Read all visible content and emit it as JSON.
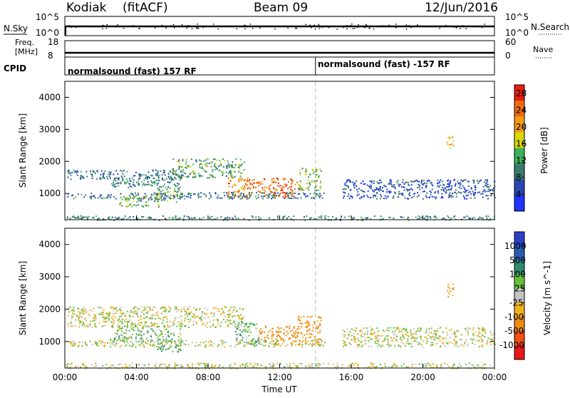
{
  "header": {
    "station": "Kodiak",
    "mode": "(fitACF)",
    "beam": "Beam 09",
    "date": "12/Jun/2016"
  },
  "top_panels": {
    "nsky_label": "N.Sky",
    "nsearch_label": "N.Search",
    "nsky_ticks": [
      "10^5",
      "10^0"
    ],
    "nsearch_ticks": [
      "10^5",
      "10^0"
    ],
    "freq_label_1": "Freq.",
    "freq_label_2": "[MHz]",
    "freq_ticks": [
      "18",
      "8"
    ],
    "nave_label": "Nave",
    "nave_ticks": [
      "60",
      "0"
    ],
    "cpid_label": "CPID",
    "cpid_segments": [
      "normalsound (fast) 157 RF",
      "normalsound (fast) -157 RF"
    ],
    "cpid_switch_hour": 14.0
  },
  "colors": {
    "power_scale": [
      "#2033ff",
      "#2a46b0",
      "#3a7a6a",
      "#3bb25a",
      "#d8d80a",
      "#f49a14",
      "#f06a0c",
      "#e61e12"
    ],
    "velocity_scale": [
      "#2a3fc8",
      "#2a5ab0",
      "#2f8a70",
      "#66c03a",
      "#c4c4c4",
      "#f0b020",
      "#f08a10",
      "#f05010",
      "#e81818"
    ]
  },
  "chart_data": [
    {
      "type": "heatmap",
      "name": "power",
      "xlabel": "",
      "ylabel": "Slant Range [km]",
      "x_ticks": [
        "00:00",
        "04:00",
        "08:00",
        "12:00",
        "16:00",
        "20:00",
        "00:00"
      ],
      "xlim": [
        0,
        24
      ],
      "ylim": [
        180,
        4500
      ],
      "y_ticks": [
        1000,
        2000,
        3000,
        4000
      ],
      "colorbar_label": "Power [dB]",
      "colorbar_ticks": [
        "4",
        "8",
        "12",
        "16",
        "20",
        "24",
        "28"
      ],
      "colorbar_range": [
        0,
        30
      ],
      "echo_regions": [
        {
          "t0": 0.1,
          "t1": 6.5,
          "r0": 1450,
          "r1": 1750,
          "level": 8
        },
        {
          "t0": 2.5,
          "t1": 6.5,
          "r0": 1200,
          "r1": 1500,
          "level": 10
        },
        {
          "t0": 6.0,
          "t1": 10.0,
          "r0": 1500,
          "r1": 2100,
          "level": 12
        },
        {
          "t0": 9.0,
          "t1": 10.0,
          "r0": 900,
          "r1": 1500,
          "level": 22
        },
        {
          "t0": 10.0,
          "t1": 13.0,
          "r0": 900,
          "r1": 1500,
          "level": 24
        },
        {
          "t0": 13.0,
          "t1": 14.3,
          "r0": 1100,
          "r1": 1800,
          "level": 14
        },
        {
          "t0": 0.1,
          "t1": 14.5,
          "r0": 850,
          "r1": 1050,
          "level": 8
        },
        {
          "t0": 3.0,
          "t1": 5.5,
          "r0": 600,
          "r1": 950,
          "level": 12
        },
        {
          "t0": 5.0,
          "t1": 6.5,
          "r0": 750,
          "r1": 1200,
          "level": 12
        },
        {
          "t0": 15.5,
          "t1": 24.0,
          "r0": 850,
          "r1": 1450,
          "level": 6
        },
        {
          "t0": 21.3,
          "t1": 21.7,
          "r0": 2400,
          "r1": 2800,
          "level": 20
        },
        {
          "t0": 0.0,
          "t1": 24.0,
          "r0": 180,
          "r1": 320,
          "level": 10
        }
      ]
    },
    {
      "type": "heatmap",
      "name": "velocity",
      "xlabel": "Time UT",
      "ylabel": "Slant Range [km]",
      "x_ticks": [
        "00:00",
        "04:00",
        "08:00",
        "12:00",
        "16:00",
        "20:00",
        "00:00"
      ],
      "xlim": [
        0,
        24
      ],
      "ylim": [
        180,
        4500
      ],
      "y_ticks": [
        1000,
        2000,
        3000,
        4000
      ],
      "colorbar_label": "Velocity [m s^-1]",
      "colorbar_ticks": [
        "1000",
        "500",
        "100",
        "25",
        "-25",
        "-100",
        "-500",
        "-1000"
      ],
      "colorbar_range": [
        -1200,
        1200
      ],
      "echo_regions": [
        {
          "t0": 0.1,
          "t1": 10.0,
          "r0": 1450,
          "r1": 2100,
          "vel": 0
        },
        {
          "t0": 2.5,
          "t1": 6.5,
          "r0": 1000,
          "r1": 1500,
          "vel": 50
        },
        {
          "t0": 5.0,
          "t1": 6.5,
          "r0": 700,
          "r1": 1100,
          "vel": 90
        },
        {
          "t0": 9.5,
          "t1": 10.8,
          "r0": 900,
          "r1": 1600,
          "vel": 90
        },
        {
          "t0": 10.8,
          "t1": 13.0,
          "r0": 1000,
          "r1": 1500,
          "vel": -250
        },
        {
          "t0": 13.0,
          "t1": 14.3,
          "r0": 900,
          "r1": 1800,
          "vel": -150
        },
        {
          "t0": 0.1,
          "t1": 14.5,
          "r0": 850,
          "r1": 1050,
          "vel": 0
        },
        {
          "t0": 15.5,
          "t1": 24.0,
          "r0": 850,
          "r1": 1450,
          "vel": 0
        },
        {
          "t0": 21.3,
          "t1": 21.7,
          "r0": 2400,
          "r1": 2800,
          "vel": -150
        },
        {
          "t0": 0.0,
          "t1": 24.0,
          "r0": 180,
          "r1": 350,
          "vel": 5
        }
      ]
    }
  ]
}
